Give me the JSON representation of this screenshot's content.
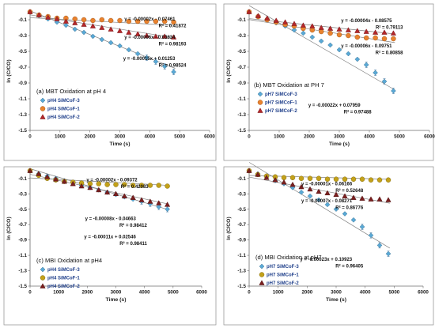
{
  "chart_data": [
    {
      "type": "scatter",
      "panel_label": "(a) MBT Oxidation at pH 4",
      "xlabel": "Time (s)",
      "ylabel": "ln (C/CO)",
      "xlim": [
        0,
        6000
      ],
      "ylim": [
        -1.5,
        0
      ],
      "x_ticks": [
        0,
        1000,
        2000,
        3000,
        4000,
        5000,
        6000
      ],
      "y_ticks": [
        -0.1,
        -0.3,
        -0.5,
        -0.7,
        -0.9,
        -1.1,
        -1.3,
        -1.5
      ],
      "legend_position": "bottom-left",
      "series": [
        {
          "name": "pH4 SiMCoF-3",
          "marker": "diamond",
          "color": "#5aa9d6",
          "x": [
            0,
            300,
            600,
            900,
            1200,
            1500,
            1800,
            2100,
            2400,
            2700,
            3000,
            3300,
            3600,
            3900,
            4200,
            4500,
            4800
          ],
          "y": [
            0,
            -0.05,
            -0.09,
            -0.13,
            -0.17,
            -0.22,
            -0.26,
            -0.31,
            -0.35,
            -0.39,
            -0.43,
            -0.48,
            -0.53,
            -0.58,
            -0.63,
            -0.69,
            -0.76
          ],
          "fit": {
            "slope": -0.00015,
            "intercept": 0.01253
          }
        },
        {
          "name": "pH4 SiMCoF-1",
          "marker": "circle",
          "color": "#e9822e",
          "x": [
            0,
            300,
            600,
            900,
            1200,
            1500,
            1800,
            2100,
            2400,
            2700,
            3000,
            3300,
            3600,
            3900,
            4200,
            4500,
            4800
          ],
          "y": [
            0,
            -0.04,
            -0.06,
            -0.08,
            -0.08,
            -0.09,
            -0.1,
            -0.11,
            -0.1,
            -0.11,
            -0.11,
            -0.12,
            -0.12,
            -0.12,
            -0.12,
            -0.12,
            -0.13
          ],
          "fit": {
            "slope": -2e-05,
            "intercept": -0.07461
          }
        },
        {
          "name": "pH4 SiMCoF-2",
          "marker": "triangle",
          "color": "#b3272a",
          "x": [
            0,
            300,
            600,
            900,
            1200,
            1500,
            1800,
            2100,
            2400,
            2700,
            3000,
            3300,
            3600,
            3900,
            4200,
            4500,
            4800
          ],
          "y": [
            0,
            -0.04,
            -0.07,
            -0.09,
            -0.12,
            -0.14,
            -0.16,
            -0.18,
            -0.2,
            -0.22,
            -0.24,
            -0.26,
            -0.28,
            -0.3,
            -0.31,
            -0.31,
            -0.32
          ],
          "fit": {
            "slope": -6e-05,
            "intercept": -0.03834
          }
        }
      ],
      "annotations": [
        {
          "lines": [
            "y = -0.00002x - 0.07461",
            "R² = 0.41872"
          ],
          "x": 4850,
          "y": -0.11
        },
        {
          "lines": [
            "y = -0.00006x - 0.03834",
            "R² = 0.98193"
          ],
          "x": 4850,
          "y": -0.34
        },
        {
          "lines": [
            "y = -0.00015x + 0.01253",
            "R² = 0.98524"
          ],
          "x": 4850,
          "y": -0.61
        }
      ]
    },
    {
      "type": "scatter",
      "panel_label": "(b) MBT Oxidation at PH 7",
      "xlabel": "Time (s)",
      "ylabel": "ln (C/CO)",
      "xlim": [
        0,
        6000
      ],
      "ylim": [
        -1.5,
        0
      ],
      "x_ticks": [
        0,
        1000,
        2000,
        3000,
        4000,
        5000,
        6000
      ],
      "y_ticks": [
        -0.1,
        -0.3,
        -0.5,
        -0.7,
        -0.9,
        -1.1,
        -1.3,
        -1.5
      ],
      "legend_position": "bottom-left",
      "series": [
        {
          "name": "pH7 SiMCoF-3",
          "marker": "diamond",
          "color": "#5aa9d6",
          "x": [
            0,
            300,
            600,
            900,
            1200,
            1500,
            1800,
            2100,
            2400,
            2700,
            3000,
            3300,
            3600,
            3900,
            4200,
            4500,
            4800
          ],
          "y": [
            0,
            -0.06,
            -0.1,
            -0.14,
            -0.18,
            -0.23,
            -0.27,
            -0.32,
            -0.37,
            -0.42,
            -0.48,
            -0.53,
            -0.6,
            -0.67,
            -0.77,
            -0.88,
            -1.0
          ],
          "fit": {
            "slope": -0.00022,
            "intercept": 0.07959
          }
        },
        {
          "name": "pH7 SiMCoF-1",
          "marker": "circle",
          "color": "#e9822e",
          "x": [
            0,
            300,
            600,
            900,
            1200,
            1500,
            1800,
            2100,
            2400,
            2700,
            3000,
            3300,
            3600,
            3900,
            4200,
            4500,
            4800
          ],
          "y": [
            0,
            -0.06,
            -0.1,
            -0.13,
            -0.16,
            -0.18,
            -0.21,
            -0.23,
            -0.25,
            -0.27,
            -0.29,
            -0.3,
            -0.32,
            -0.33,
            -0.33,
            -0.34,
            -0.34
          ],
          "fit": {
            "slope": -6e-05,
            "intercept": -0.09751
          }
        },
        {
          "name": "pH7 SiMCoF-2",
          "marker": "triangle",
          "color": "#b3272a",
          "x": [
            0,
            300,
            600,
            900,
            1200,
            1500,
            1800,
            2100,
            2400,
            2700,
            3000,
            3300,
            3600,
            3900,
            4200,
            4500,
            4800
          ],
          "y": [
            0,
            -0.05,
            -0.08,
            -0.11,
            -0.13,
            -0.15,
            -0.17,
            -0.18,
            -0.2,
            -0.21,
            -0.22,
            -0.23,
            -0.24,
            -0.25,
            -0.26,
            -0.26,
            -0.27
          ],
          "fit": {
            "slope": -4e-05,
            "intercept": -0.08575
          }
        }
      ],
      "annotations": [
        {
          "lines": [
            "y = -0.00004x - 0.08575",
            "R² = 0.79113"
          ],
          "x": 4750,
          "y": -0.13
        },
        {
          "lines": [
            "y = -0.00006x - 0.09751",
            "R² = 0.80858"
          ],
          "x": 4750,
          "y": -0.45
        },
        {
          "lines": [
            "y = -0.00022x + 0.07959",
            "R² = 0.97488"
          ],
          "x": 3700,
          "y": -1.2
        }
      ]
    },
    {
      "type": "scatter",
      "panel_label": "(c) MBI Oxidation at pH4",
      "xlabel": "Time (s)",
      "ylabel": "ln (C/CO)",
      "xlim": [
        0,
        6000
      ],
      "ylim": [
        -1.5,
        0
      ],
      "x_ticks": [
        0,
        1000,
        2000,
        3000,
        4000,
        5000,
        6000
      ],
      "y_ticks": [
        -0.1,
        -0.3,
        -0.5,
        -0.7,
        -0.9,
        -1.1,
        -1.3,
        -1.5
      ],
      "legend_position": "bottom-left",
      "series": [
        {
          "name": "pH4 SiMCoF-3",
          "marker": "diamond",
          "color": "#5aa9d6",
          "x": [
            0,
            300,
            600,
            900,
            1200,
            1500,
            1800,
            2100,
            2400,
            2700,
            3000,
            3300,
            3600,
            3900,
            4200,
            4500,
            4800
          ],
          "y": [
            0,
            -0.04,
            -0.07,
            -0.1,
            -0.13,
            -0.16,
            -0.19,
            -0.22,
            -0.25,
            -0.28,
            -0.31,
            -0.34,
            -0.37,
            -0.4,
            -0.43,
            -0.47,
            -0.5
          ],
          "fit": {
            "slope": -0.00011,
            "intercept": 0.02546
          }
        },
        {
          "name": "pH4 SiMCoF-1",
          "marker": "circle",
          "color": "#c3a11a",
          "x": [
            0,
            300,
            600,
            900,
            1200,
            1500,
            1800,
            2100,
            2400,
            2700,
            3000,
            3300,
            3600,
            3900,
            4200,
            4500,
            4800
          ],
          "y": [
            0,
            -0.06,
            -0.1,
            -0.12,
            -0.14,
            -0.15,
            -0.16,
            -0.17,
            -0.17,
            -0.18,
            -0.18,
            -0.18,
            -0.19,
            -0.19,
            -0.19,
            -0.19,
            -0.2
          ],
          "fit": {
            "slope": -2e-05,
            "intercept": -0.09372
          }
        },
        {
          "name": "pH4 SiMCoF-2",
          "marker": "triangle",
          "color": "#7a1f1f",
          "x": [
            0,
            300,
            600,
            900,
            1200,
            1500,
            1800,
            2100,
            2400,
            2700,
            3000,
            3300,
            3600,
            3900,
            4200,
            4500,
            4800
          ],
          "y": [
            0,
            -0.04,
            -0.08,
            -0.11,
            -0.14,
            -0.17,
            -0.2,
            -0.22,
            -0.25,
            -0.28,
            -0.3,
            -0.33,
            -0.35,
            -0.38,
            -0.4,
            -0.42,
            -0.44
          ],
          "fit": {
            "slope": -8e-05,
            "intercept": -0.04663
          }
        }
      ],
      "annotations": [
        {
          "lines": [
            "y = -0.00002x - 0.09372",
            "R² = 0.42083"
          ],
          "x": 3750,
          "y": -0.14
        },
        {
          "lines": [
            "y = -0.00008x - 0.04663",
            "R² = 0.98412"
          ],
          "x": 3700,
          "y": -0.64
        },
        {
          "lines": [
            "y = -0.00011x + 0.02546",
            "R² = 0.98411"
          ],
          "x": 3700,
          "y": -0.88
        }
      ]
    },
    {
      "type": "scatter",
      "panel_label": "(d) MBI Oxidation at pH7",
      "xlabel": "Time (s)",
      "ylabel": "ln (C/CO)",
      "xlim": [
        0,
        6000
      ],
      "ylim": [
        -1.5,
        0
      ],
      "x_ticks": [
        0,
        1000,
        2000,
        3000,
        4000,
        5000,
        6000
      ],
      "y_ticks": [
        -0.1,
        -0.3,
        -0.5,
        -0.7,
        -0.9,
        -1.1,
        -1.3,
        -1.5
      ],
      "legend_position": "bottom-left",
      "series": [
        {
          "name": "pH7 SiMCoF-3",
          "marker": "diamond",
          "color": "#5aa9d6",
          "x": [
            0,
            300,
            600,
            900,
            1200,
            1500,
            1800,
            2100,
            2400,
            2700,
            3000,
            3300,
            3600,
            3900,
            4200,
            4500,
            4800
          ],
          "y": [
            0,
            -0.04,
            -0.08,
            -0.13,
            -0.17,
            -0.22,
            -0.28,
            -0.33,
            -0.38,
            -0.44,
            -0.5,
            -0.56,
            -0.64,
            -0.73,
            -0.84,
            -0.97,
            -1.08
          ],
          "fit": {
            "slope": -0.00023,
            "intercept": 0.10923
          }
        },
        {
          "name": "pH7 SiMCoF-1",
          "marker": "circle",
          "color": "#c3a11a",
          "x": [
            0,
            300,
            600,
            900,
            1200,
            1500,
            1800,
            2100,
            2400,
            2700,
            3000,
            3300,
            3600,
            3900,
            4200,
            4500,
            4800
          ],
          "y": [
            0,
            -0.05,
            -0.07,
            -0.08,
            -0.09,
            -0.09,
            -0.1,
            -0.1,
            -0.1,
            -0.11,
            -0.11,
            -0.11,
            -0.11,
            -0.11,
            -0.12,
            -0.12,
            -0.12
          ],
          "fit": {
            "slope": -1e-05,
            "intercept": -0.06166
          }
        },
        {
          "name": "pH7 SiMCoF-2",
          "marker": "triangle",
          "color": "#7a1f1f",
          "x": [
            0,
            300,
            600,
            900,
            1200,
            1500,
            1800,
            2100,
            2400,
            2700,
            3000,
            3300,
            3600,
            3900,
            4200,
            4500,
            4800
          ],
          "y": [
            0,
            -0.05,
            -0.09,
            -0.12,
            -0.15,
            -0.18,
            -0.21,
            -0.24,
            -0.27,
            -0.29,
            -0.31,
            -0.33,
            -0.35,
            -0.36,
            -0.37,
            -0.37,
            -0.38
          ],
          "fit": {
            "slope": -7e-05,
            "intercept": -0.08271
          }
        }
      ],
      "annotations": [
        {
          "lines": [
            "y = -0.00001x - 0.06166",
            "R² = 0.52648"
          ],
          "x": 3550,
          "y": -0.19
        },
        {
          "lines": [
            "y = -0.00007x - 0.08271",
            "R² = 0.86776"
          ],
          "x": 3550,
          "y": -0.41
        },
        {
          "lines": [
            "y = -0.00023x + 0.10923",
            "R² = 0.96405"
          ],
          "x": 3550,
          "y": -1.17
        }
      ]
    }
  ]
}
